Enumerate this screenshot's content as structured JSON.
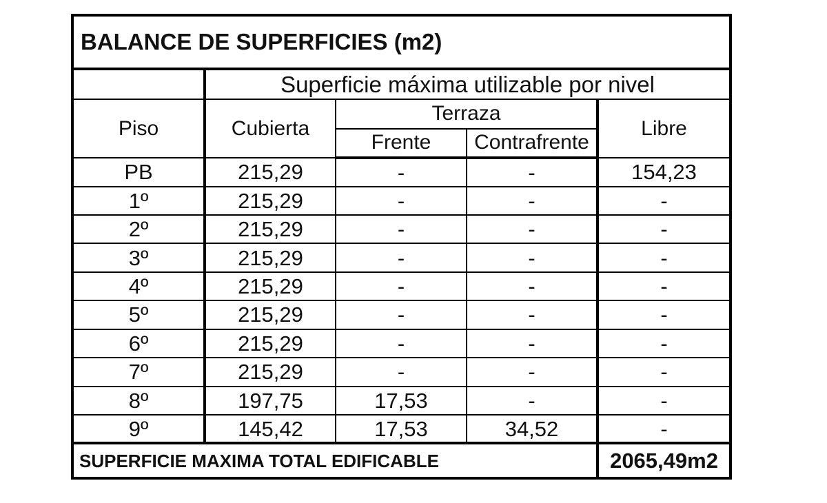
{
  "title": "BALANCE DE SUPERFICIES (m2)",
  "group_header": "Superficie máxima utilizable por nivel",
  "columns": {
    "piso": "Piso",
    "cubierta": "Cubierta",
    "terraza": "Terraza",
    "frente": "Frente",
    "contrafrente": "Contrafrente",
    "libre": "Libre"
  },
  "rows": [
    {
      "piso": "PB",
      "cubierta": "215,29",
      "frente": "-",
      "contrafrente": "-",
      "libre": "154,23"
    },
    {
      "piso": "1º",
      "cubierta": "215,29",
      "frente": "-",
      "contrafrente": "-",
      "libre": "-"
    },
    {
      "piso": "2º",
      "cubierta": "215,29",
      "frente": "-",
      "contrafrente": "-",
      "libre": "-"
    },
    {
      "piso": "3º",
      "cubierta": "215,29",
      "frente": "-",
      "contrafrente": "-",
      "libre": "-"
    },
    {
      "piso": "4º",
      "cubierta": "215,29",
      "frente": "-",
      "contrafrente": "-",
      "libre": "-"
    },
    {
      "piso": "5º",
      "cubierta": "215,29",
      "frente": "-",
      "contrafrente": "-",
      "libre": "-"
    },
    {
      "piso": "6º",
      "cubierta": "215,29",
      "frente": "-",
      "contrafrente": "-",
      "libre": "-"
    },
    {
      "piso": "7º",
      "cubierta": "215,29",
      "frente": "-",
      "contrafrente": "-",
      "libre": "-"
    },
    {
      "piso": "8º",
      "cubierta": "197,75",
      "frente": "17,53",
      "contrafrente": "-",
      "libre": "-"
    },
    {
      "piso": "9º",
      "cubierta": "145,42",
      "frente": "17,53",
      "contrafrente": "34,52",
      "libre": "-"
    }
  ],
  "total": {
    "label": "SUPERFICIE MAXIMA TOTAL EDIFICABLE",
    "value": "2065,49m2"
  }
}
